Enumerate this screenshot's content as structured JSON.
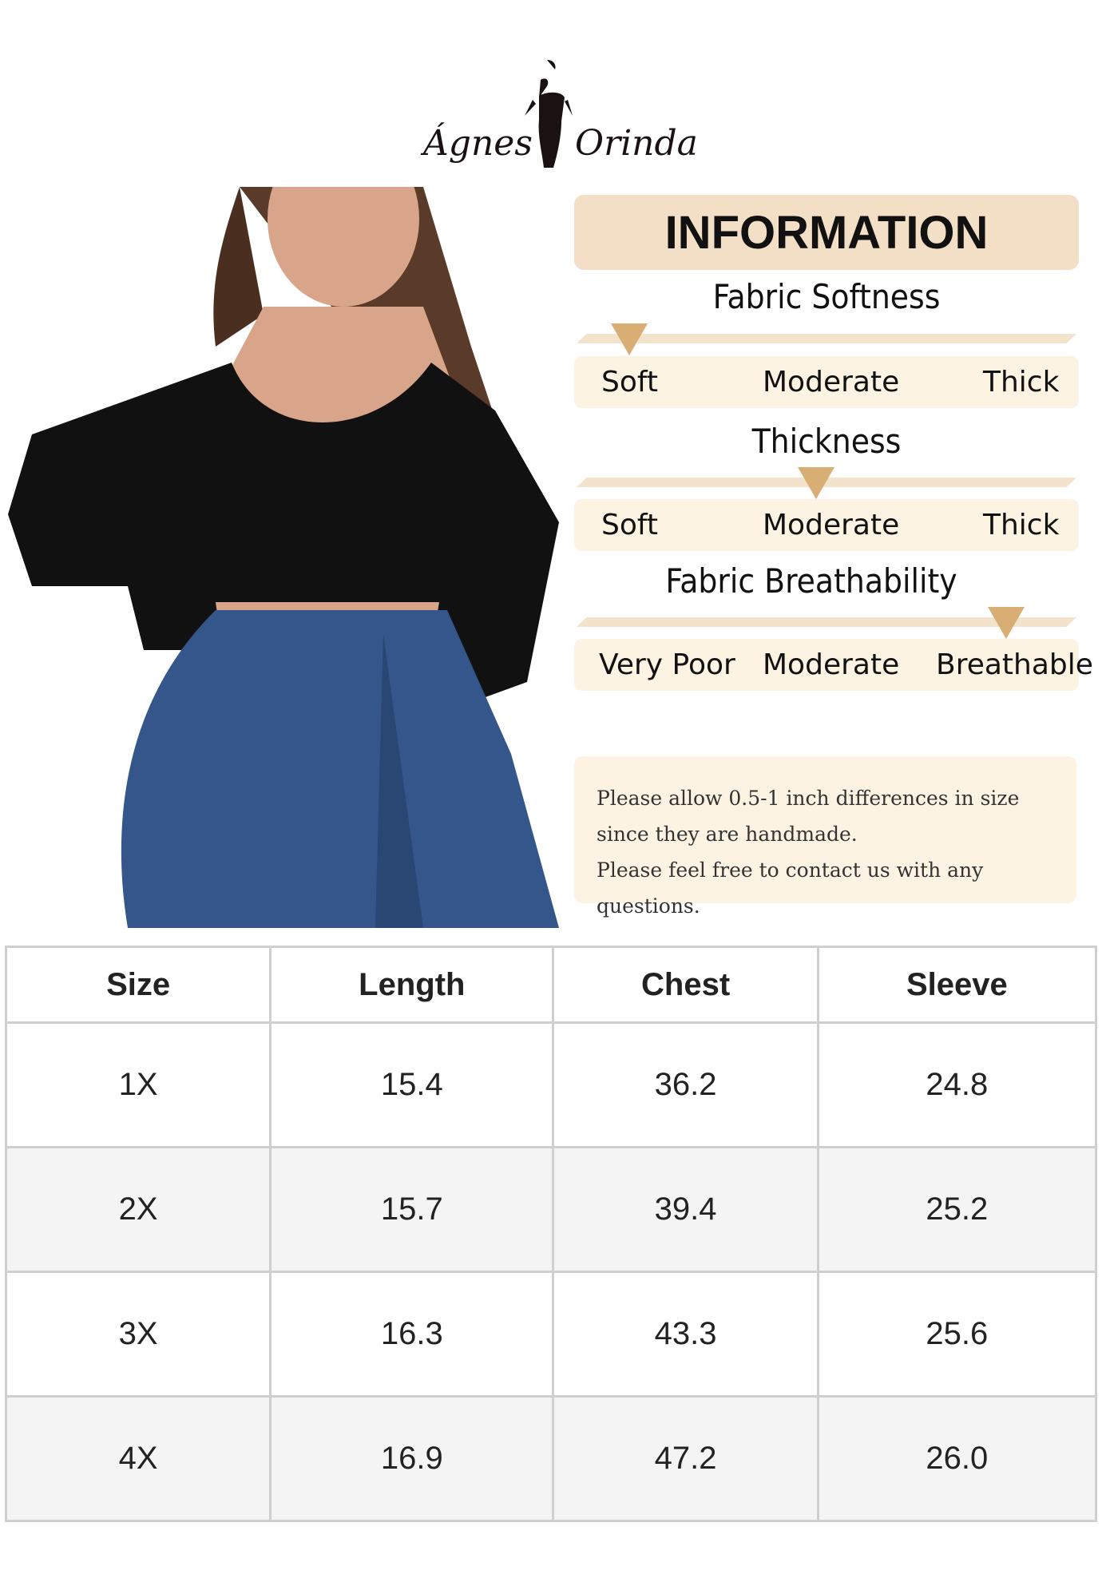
{
  "brand": {
    "name_left": "Ágnes",
    "name_right": "Orinda"
  },
  "info": {
    "heading": "INFORMATION",
    "scales": [
      {
        "title": "Fabric Softness",
        "labels": [
          "Soft",
          "Moderate",
          "Thick"
        ],
        "level": 0.08
      },
      {
        "title": "Thickness",
        "labels": [
          "Soft",
          "Moderate",
          "Thick"
        ],
        "level": 0.48
      },
      {
        "title": "Fabric Breathability",
        "labels": [
          "Very Poor",
          "Moderate",
          "Breathable"
        ],
        "level": 0.86
      }
    ],
    "note": [
      "Please allow 0.5-1 inch differences in size",
      "since they are handmade.",
      "Please feel free to contact us with any questions."
    ],
    "colors": {
      "header": "#f2dfc5",
      "panel": "#fdf3e3",
      "marker": "#d9ae74"
    }
  },
  "size_table": {
    "headers": [
      "Size",
      "Length",
      "Chest",
      "Sleeve"
    ],
    "rows": [
      [
        "1X",
        "15.4",
        "36.2",
        "24.8"
      ],
      [
        "2X",
        "15.7",
        "39.4",
        "25.2"
      ],
      [
        "3X",
        "16.3",
        "43.3",
        "25.6"
      ],
      [
        "4X",
        "16.9",
        "47.2",
        "26.0"
      ]
    ]
  }
}
